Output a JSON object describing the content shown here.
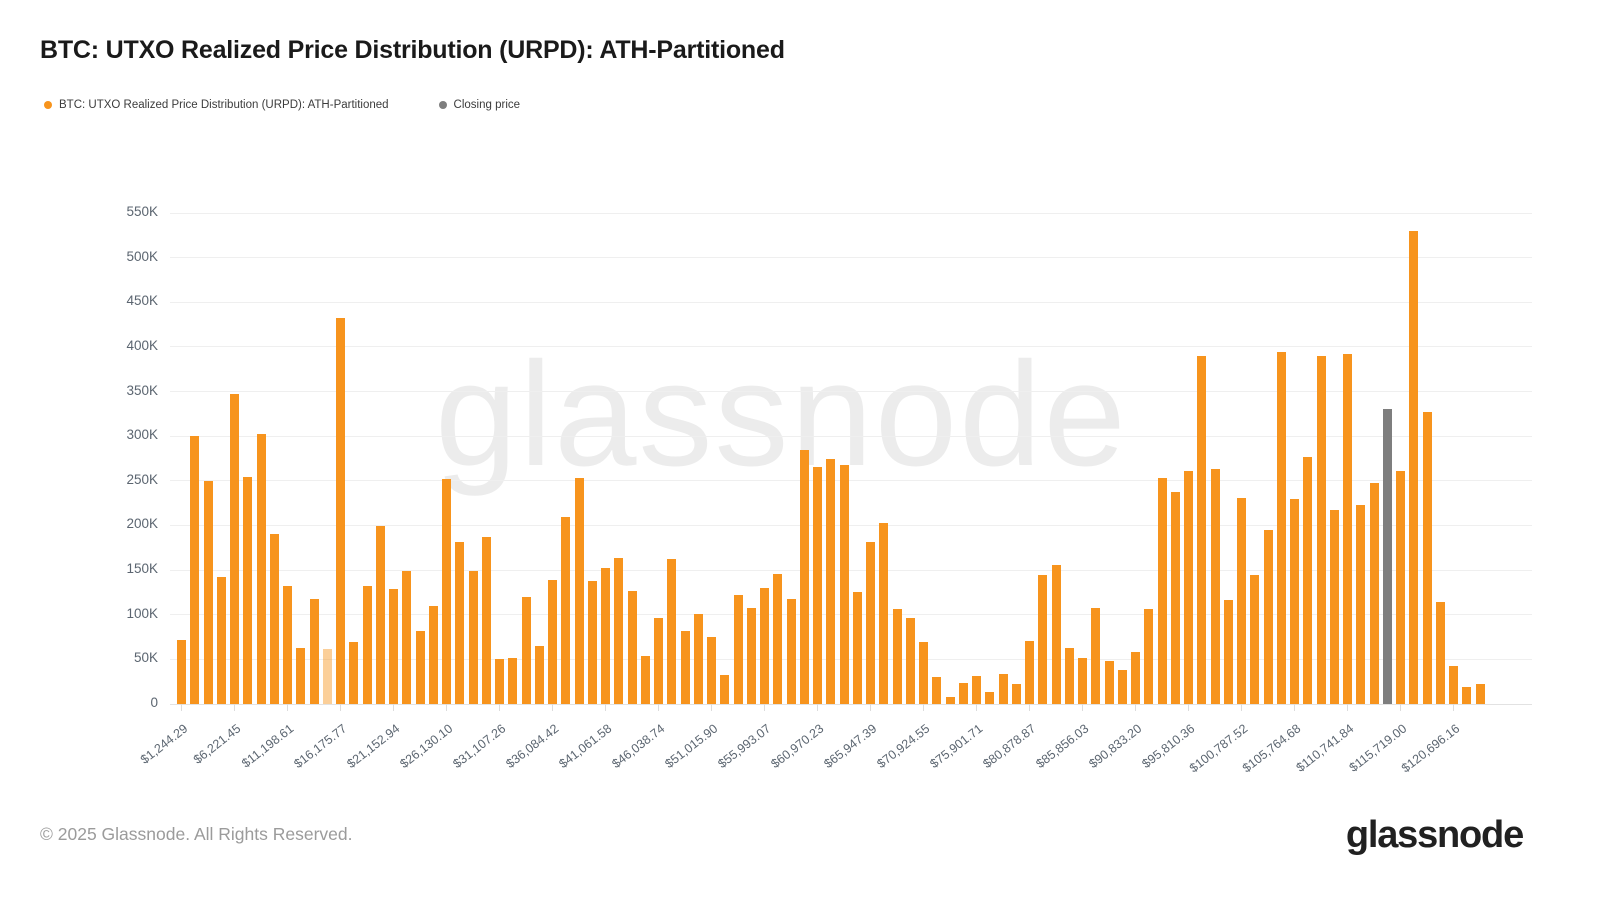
{
  "header": {
    "title": "BTC: UTXO Realized Price Distribution (URPD): ATH-Partitioned"
  },
  "legend": {
    "items": [
      {
        "label": "BTC: UTXO Realized Price Distribution (URPD): ATH-Partitioned",
        "color": "#f7941d"
      },
      {
        "label": "Closing price",
        "color": "#7e7e7e"
      }
    ]
  },
  "watermark": "glassnode",
  "footer": {
    "copyright": "© 2025 Glassnode. All Rights Reserved.",
    "logo_text": "glassnode"
  },
  "chart_data": {
    "type": "bar",
    "title": "BTC: UTXO Realized Price Distribution (URPD): ATH-Partitioned",
    "xlabel": "",
    "ylabel": "",
    "grid": true,
    "legend_position": "top-left",
    "ylim": [
      0,
      550000
    ],
    "y_tick_labels": [
      "0",
      "50K",
      "100K",
      "150K",
      "200K",
      "250K",
      "300K",
      "350K",
      "400K",
      "450K",
      "500K",
      "550K"
    ],
    "x_tick_labels": [
      "$1,244.29",
      "$6,221.45",
      "$11,198.61",
      "$16,175.77",
      "$21,152.94",
      "$26,130.10",
      "$31,107.26",
      "$36,084.42",
      "$41,061.58",
      "$46,038.74",
      "$51,015.90",
      "$55,993.07",
      "$60,970.23",
      "$65,947.39",
      "$70,924.55",
      "$75,901.71",
      "$80,878.87",
      "$85,856.03",
      "$90,833.20",
      "$95,810.36",
      "$100,787.52",
      "$105,764.68",
      "$110,741.84",
      "$115,719.00",
      "$120,696.16"
    ],
    "x_tick_every": 4,
    "bar_price_step_usd": 1244.29,
    "series": [
      {
        "name": "BTC: UTXO Realized Price Distribution (URPD): ATH-Partitioned",
        "values": [
          72000,
          300000,
          250000,
          142000,
          347000,
          254000,
          303000,
          190000,
          132000,
          63000,
          118000,
          62000,
          432000,
          69000,
          132000,
          199000,
          129000,
          149000,
          82000,
          110000,
          252000,
          181000,
          149000,
          187000,
          50000,
          52000,
          120000,
          65000,
          139000,
          210000,
          253000,
          138000,
          152000,
          164000,
          127000,
          54000,
          96000,
          163000,
          82000,
          101000,
          75000,
          32000,
          122000,
          107000,
          130000,
          146000,
          118000,
          284000,
          266000,
          275000,
          268000,
          125000,
          181000,
          203000,
          106000,
          96000,
          69000,
          30000,
          8000,
          24000,
          31000,
          14000,
          34000,
          22000,
          71000,
          145000,
          156000,
          63000,
          52000,
          108000,
          48000,
          38000,
          58000,
          106000,
          253000,
          237000,
          261000,
          390000,
          263000,
          116000,
          231000,
          145000,
          195000,
          394000,
          230000,
          277000,
          390000,
          217000,
          392000,
          223000,
          248000,
          330000,
          261000,
          530000,
          327000,
          114000,
          43000,
          19000,
          22000
        ]
      }
    ],
    "closing_price_bar_index": 91,
    "faded_bar_index": 11,
    "colors": {
      "bar": "#f7941d",
      "bar_faded": "rgba(247,148,29,0.45)",
      "closing_price": "#7e7e7e",
      "grid": "#efefef",
      "axis_text": "#5b6570",
      "watermark": "#ececec"
    }
  }
}
